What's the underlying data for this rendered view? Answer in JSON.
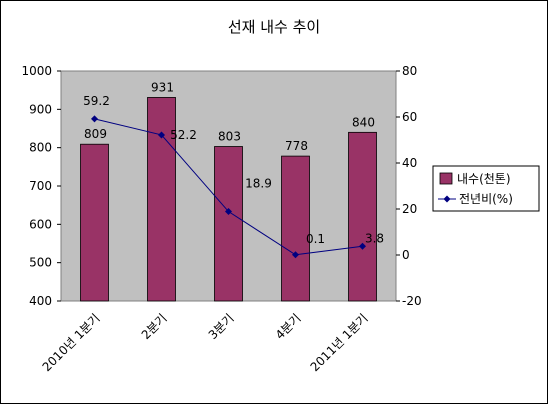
{
  "chart_data": {
    "type": "bar",
    "title": "선재 내수 추이",
    "categories": [
      "2010년 1분기",
      "2분기",
      "3분기",
      "4분기",
      "2011년 1분기"
    ],
    "series": [
      {
        "name": "내수(천톤)",
        "type": "bar",
        "axis": "left",
        "values": [
          809,
          931,
          803,
          778,
          840
        ],
        "color": "#993366"
      },
      {
        "name": "전년비(%)",
        "type": "line",
        "axis": "right",
        "values": [
          59.2,
          52.2,
          18.9,
          0.1,
          3.8
        ],
        "color": "#000080"
      }
    ],
    "y_left": {
      "min": 400,
      "max": 1000,
      "step": 100,
      "ticks": [
        "400",
        "500",
        "600",
        "700",
        "800",
        "900",
        "1000"
      ]
    },
    "y_right": {
      "min": -20,
      "max": 80,
      "step": 20,
      "ticks": [
        "-20",
        "0",
        "20",
        "40",
        "60",
        "80"
      ]
    },
    "bar_labels": [
      "809",
      "931",
      "803",
      "778",
      "840"
    ],
    "line_labels": [
      "59.2",
      "52.2",
      "18.9",
      "0.1",
      "3.8"
    ],
    "plot_background": "#c0c0c0",
    "grid": false,
    "legend_position": "right"
  }
}
